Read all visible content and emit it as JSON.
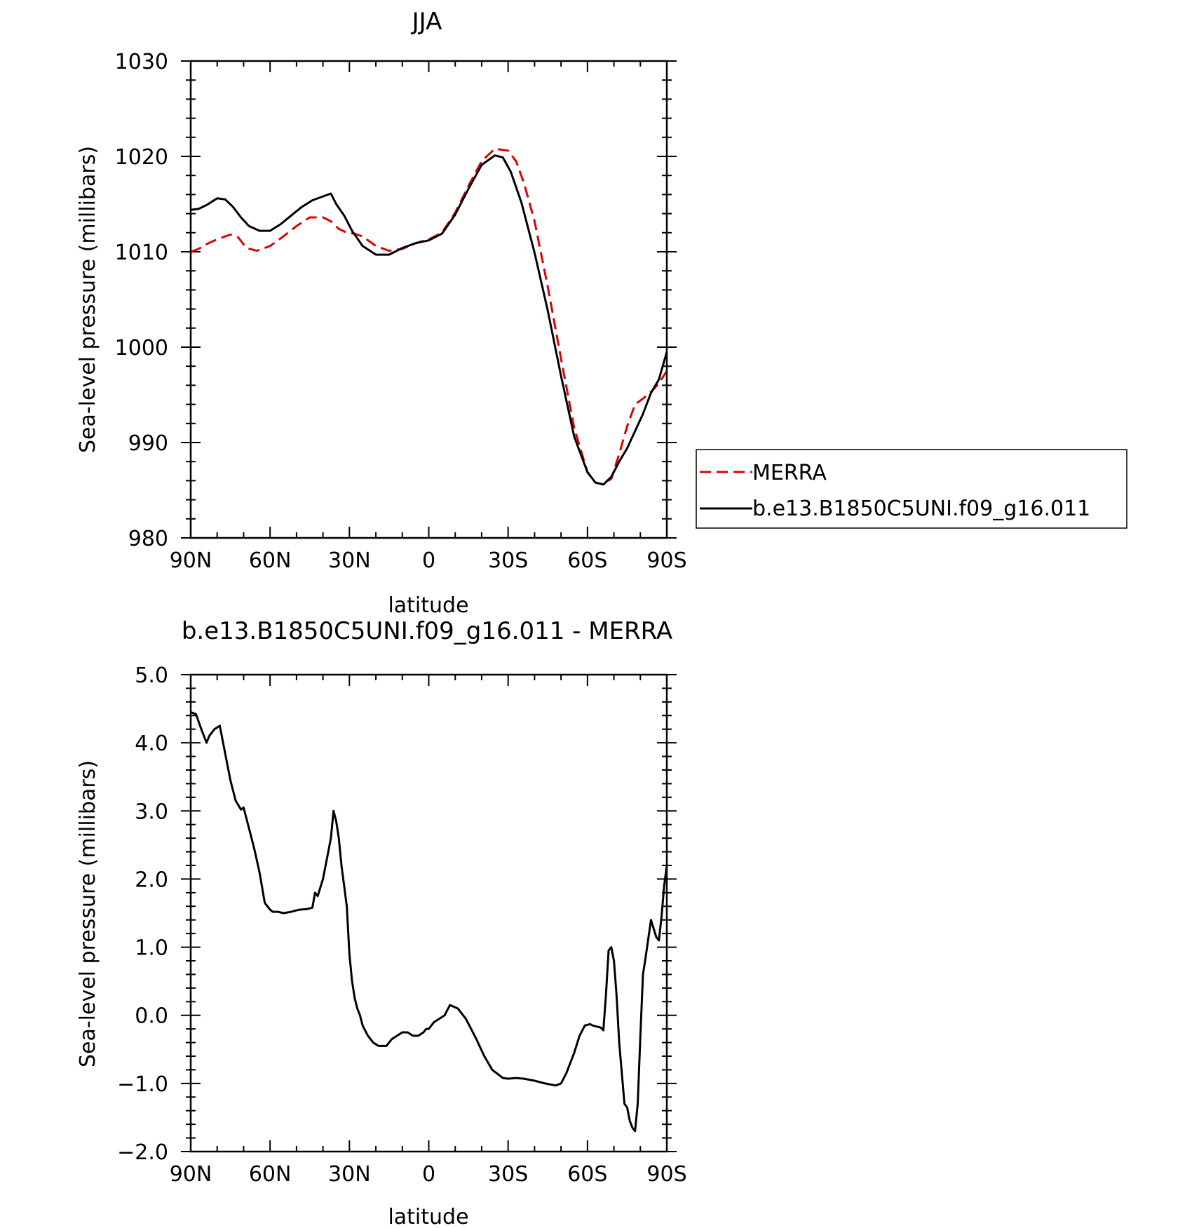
{
  "chart_data": [
    {
      "type": "line",
      "title": "JJA",
      "xlabel": "latitude",
      "ylabel": "Sea-level pressure (millibars)",
      "xlim": [
        90,
        -90
      ],
      "ylim": [
        980,
        1030
      ],
      "xticks": [
        90,
        60,
        30,
        0,
        -30,
        -60,
        -90
      ],
      "xtick_labels": [
        "90N",
        "60N",
        "30N",
        "0",
        "30S",
        "60S",
        "90S"
      ],
      "yticks": [
        980,
        990,
        1000,
        1010,
        1020,
        1030
      ],
      "ytick_labels": [
        "980",
        "990",
        "1000",
        "1010",
        "1020",
        "1030"
      ],
      "legend_position": "right",
      "series": [
        {
          "name": "MERRA",
          "color": "#e00000",
          "dash": true,
          "x": [
            90,
            87,
            84,
            80,
            75,
            72,
            69,
            65,
            60,
            55,
            50,
            45,
            40,
            37,
            34,
            31,
            28,
            25,
            20,
            15,
            10,
            5,
            0,
            -5,
            -10,
            -15,
            -20,
            -25,
            -30,
            -33,
            -36,
            -40,
            -45,
            -50,
            -55,
            -60,
            -63,
            -66,
            -69,
            -72,
            -75,
            -78,
            -81,
            -84,
            -87,
            -90
          ],
          "y": [
            1010.0,
            1010.3,
            1010.8,
            1011.3,
            1011.8,
            1011.5,
            1010.4,
            1010.1,
            1010.6,
            1011.6,
            1012.7,
            1013.6,
            1013.6,
            1013.2,
            1012.4,
            1012.0,
            1011.9,
            1011.6,
            1010.6,
            1010.1,
            1010.3,
            1010.9,
            1011.3,
            1012.0,
            1014.1,
            1016.9,
            1019.5,
            1020.8,
            1020.6,
            1019.5,
            1017.2,
            1013.2,
            1006.3,
            998.8,
            991.5,
            986.9,
            985.8,
            985.6,
            986.2,
            988.8,
            991.7,
            994.0,
            994.6,
            995.3,
            996.2,
            997.5
          ]
        },
        {
          "name": "b.e13.B1850C5UNI.f09_g16.011",
          "color": "#000000",
          "dash": false,
          "x": [
            90,
            87,
            84,
            80,
            77,
            74,
            71,
            68,
            64,
            60,
            56,
            52,
            48,
            44,
            40,
            37,
            35,
            32,
            29,
            25,
            20,
            15,
            10,
            5,
            0,
            -5,
            -10,
            -15,
            -20,
            -25,
            -28,
            -31,
            -35,
            -40,
            -45,
            -50,
            -55,
            -60,
            -63,
            -66,
            -69,
            -72,
            -75,
            -78,
            -81,
            -84,
            -87,
            -90
          ],
          "y": [
            1014.4,
            1014.5,
            1014.9,
            1015.6,
            1015.5,
            1014.7,
            1013.6,
            1012.7,
            1012.2,
            1012.2,
            1012.9,
            1013.8,
            1014.7,
            1015.4,
            1015.8,
            1016.1,
            1015.0,
            1013.8,
            1012.2,
            1010.6,
            1009.7,
            1009.7,
            1010.4,
            1010.9,
            1011.2,
            1011.9,
            1013.9,
            1016.6,
            1019.1,
            1020.1,
            1019.9,
            1018.4,
            1015.2,
            1009.9,
            1003.8,
            997.0,
            990.6,
            986.9,
            985.8,
            985.6,
            986.4,
            988.0,
            989.4,
            991.2,
            993.0,
            995.2,
            996.6,
            999.5
          ]
        }
      ]
    },
    {
      "type": "line",
      "title": "b.e13.B1850C5UNI.f09_g16.011 - MERRA",
      "xlabel": "latitude",
      "ylabel": "Sea-level pressure (millibars)",
      "xlim": [
        90,
        -90
      ],
      "ylim": [
        -2.0,
        5.0
      ],
      "xticks": [
        90,
        60,
        30,
        0,
        -30,
        -60,
        -90
      ],
      "xtick_labels": [
        "90N",
        "60N",
        "30N",
        "0",
        "30S",
        "60S",
        "90S"
      ],
      "yticks": [
        -2.0,
        -1.0,
        0.0,
        1.0,
        2.0,
        3.0,
        4.0,
        5.0
      ],
      "ytick_labels": [
        "-2.0",
        "-1.0",
        "0.0",
        "1.0",
        "2.0",
        "3.0",
        "4.0",
        "5.0"
      ],
      "series": [
        {
          "color": "#000000",
          "dash": false,
          "x": [
            90,
            88,
            86,
            84,
            83,
            81,
            79,
            77,
            75,
            73,
            71,
            70,
            68,
            66,
            64,
            62,
            60,
            59,
            57,
            55,
            52,
            49,
            46,
            44,
            43,
            42,
            40,
            39,
            37,
            36,
            35,
            34,
            33,
            32,
            31,
            30,
            29,
            28,
            27,
            26,
            25,
            23,
            21,
            19,
            17,
            16,
            14,
            12,
            10,
            8,
            6,
            4,
            2,
            1,
            0,
            -2,
            -4,
            -6,
            -8,
            -11,
            -12,
            -13,
            -14,
            -16,
            -18,
            -21,
            -24,
            -28,
            -30,
            -33,
            -36,
            -40,
            -44,
            -48,
            -50,
            -52,
            -55,
            -57,
            -59,
            -61,
            -62,
            -65,
            -66,
            -67,
            -68,
            -69,
            -70,
            -71,
            -72,
            -74,
            -75,
            -76,
            -77,
            -78,
            -79,
            -80,
            -81,
            -82,
            -84,
            -86,
            -87,
            -88,
            -89,
            -90
          ],
          "y": [
            4.45,
            4.42,
            4.2,
            4.0,
            4.1,
            4.2,
            4.25,
            3.85,
            3.45,
            3.15,
            3.02,
            3.05,
            2.75,
            2.45,
            2.1,
            1.65,
            1.55,
            1.52,
            1.52,
            1.5,
            1.52,
            1.55,
            1.56,
            1.58,
            1.8,
            1.75,
            2.0,
            2.2,
            2.6,
            3.0,
            2.85,
            2.6,
            2.2,
            1.9,
            1.6,
            0.9,
            0.5,
            0.25,
            0.1,
            0.0,
            -0.15,
            -0.3,
            -0.4,
            -0.45,
            -0.45,
            -0.45,
            -0.35,
            -0.3,
            -0.25,
            -0.25,
            -0.3,
            -0.3,
            -0.25,
            -0.2,
            -0.2,
            -0.1,
            -0.05,
            0.0,
            0.15,
            0.1,
            0.05,
            0.0,
            -0.05,
            -0.2,
            -0.35,
            -0.6,
            -0.8,
            -0.92,
            -0.93,
            -0.92,
            -0.93,
            -0.96,
            -1.0,
            -1.03,
            -1.0,
            -0.85,
            -0.55,
            -0.3,
            -0.15,
            -0.13,
            -0.15,
            -0.18,
            -0.22,
            0.3,
            0.95,
            1.0,
            0.8,
            0.3,
            -0.4,
            -1.3,
            -1.35,
            -1.55,
            -1.65,
            -1.7,
            -1.3,
            -0.3,
            0.6,
            0.85,
            1.4,
            1.15,
            1.1,
            1.45,
            1.9,
            2.2
          ]
        }
      ]
    }
  ]
}
